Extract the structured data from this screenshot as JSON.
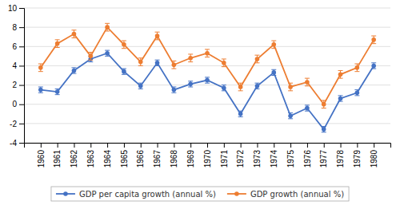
{
  "chart_data": {
    "type": "line",
    "x": [
      1960,
      1961,
      1962,
      1963,
      1964,
      1965,
      1966,
      1967,
      1968,
      1969,
      1970,
      1971,
      1972,
      1973,
      1974,
      1975,
      1976,
      1977,
      1978,
      1979,
      1980
    ],
    "xlim": [
      1959,
      1981
    ],
    "xticks": [
      1960,
      1961,
      1962,
      1963,
      1964,
      1965,
      1966,
      1967,
      1968,
      1969,
      1970,
      1971,
      1972,
      1973,
      1974,
      1975,
      1976,
      1977,
      1978,
      1979,
      1980
    ],
    "ylim": [
      -4,
      10
    ],
    "yticks": [
      -4,
      -2,
      0,
      2,
      4,
      6,
      8,
      10
    ],
    "grid": true,
    "legend": "bottom",
    "marker": "circle",
    "series": [
      {
        "name": "GDP per capita growth (annual %)",
        "color": "#4472C4",
        "values": [
          1.5,
          1.3,
          3.5,
          4.7,
          5.3,
          3.4,
          1.9,
          4.3,
          1.5,
          2.1,
          2.5,
          1.7,
          -1.0,
          1.9,
          3.3,
          -1.2,
          -0.4,
          -2.6,
          0.6,
          1.2,
          4.0
        ],
        "errors": [
          0.3,
          0.3,
          0.3,
          0.3,
          0.3,
          0.3,
          0.3,
          0.3,
          0.3,
          0.3,
          0.3,
          0.3,
          0.3,
          0.3,
          0.3,
          0.3,
          0.3,
          0.3,
          0.3,
          0.3,
          0.3
        ]
      },
      {
        "name": "GDP growth (annual %)",
        "color": "#ED7D31",
        "values": [
          3.8,
          6.3,
          7.3,
          5.0,
          8.0,
          6.2,
          4.4,
          7.1,
          4.1,
          4.8,
          5.3,
          4.3,
          1.8,
          4.7,
          6.2,
          1.8,
          2.3,
          0.0,
          3.1,
          3.8,
          6.7
        ],
        "errors": [
          0.4,
          0.4,
          0.4,
          0.4,
          0.4,
          0.4,
          0.4,
          0.4,
          0.4,
          0.4,
          0.4,
          0.4,
          0.4,
          0.4,
          0.4,
          0.4,
          0.4,
          0.4,
          0.4,
          0.4,
          0.4
        ]
      }
    ]
  }
}
